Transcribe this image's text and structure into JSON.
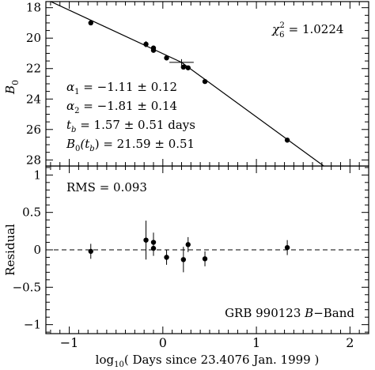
{
  "chart_data": [
    {
      "type": "scatter",
      "panel": "top",
      "ylabel_main": "B",
      "ylabel_sub": "0",
      "y_inverted": true,
      "xlim": [
        -1.25,
        2.2
      ],
      "ylim": [
        17.6,
        28.4
      ],
      "yticks": [
        18,
        20,
        22,
        24,
        26,
        28
      ],
      "points": [
        {
          "x": -0.77,
          "y": 19.0,
          "err": 0.1
        },
        {
          "x": -0.18,
          "y": 20.4,
          "err": 0.2
        },
        {
          "x": -0.1,
          "y": 20.65,
          "err": 0.13
        },
        {
          "x": -0.1,
          "y": 20.8,
          "err": 0.1
        },
        {
          "x": 0.04,
          "y": 21.3,
          "err": 0.1
        },
        {
          "x": 0.22,
          "y": 21.9,
          "err": 0.15
        },
        {
          "x": 0.27,
          "y": 21.95,
          "err": 0.1
        },
        {
          "x": 0.45,
          "y": 22.85,
          "err": 0.1
        },
        {
          "x": 1.33,
          "y": 26.7,
          "err": 0.1
        }
      ],
      "break_marker": {
        "x": 0.2,
        "y": 21.59,
        "xerr": 0.13
      },
      "fit_line": [
        {
          "x": -1.25,
          "y": 17.45
        },
        {
          "x": 0.2,
          "y": 21.59
        },
        {
          "x": 1.72,
          "y": 28.4
        }
      ],
      "annotations": {
        "chi_label": "χ",
        "chi_sub": "6",
        "chi_sup": "2",
        "chi_value": " = 1.0224",
        "alpha1_label": "α",
        "alpha1_sub": "1",
        "alpha1_value": " = −1.11 ± 0.12",
        "alpha2_label": "α",
        "alpha2_sub": "2",
        "alpha2_value": " = −1.81 ± 0.14",
        "tb_label": "t",
        "tb_sub": "b",
        "tb_value": " = 1.57 ± 0.51 days",
        "b0tb_label_a": "B",
        "b0tb_sub": "0",
        "b0tb_label_b": "(t",
        "b0tb_sub2": "b",
        "b0tb_value": ") = 21.59 ± 0.51"
      }
    },
    {
      "type": "scatter",
      "panel": "bottom",
      "ylabel": "Residual",
      "xlabel_a": "log",
      "xlabel_sub": "10",
      "xlabel_b": "( Days since 23.4076 Jan. 1999 )",
      "xlim": [
        -1.25,
        2.2
      ],
      "ylim": [
        -1.12,
        1.12
      ],
      "yticks": [
        -1,
        -0.5,
        0,
        0.5,
        1
      ],
      "ytick_labels": [
        "−1",
        "−0.5",
        "0",
        "0.5",
        "1"
      ],
      "xticks": [
        -1,
        0,
        1,
        2
      ],
      "xtick_labels": [
        "−1",
        "0",
        "1",
        "2"
      ],
      "points": [
        {
          "x": -0.77,
          "y": -0.02,
          "err": 0.1
        },
        {
          "x": -0.18,
          "y": 0.13,
          "err": 0.26
        },
        {
          "x": -0.1,
          "y": 0.1,
          "err": 0.13
        },
        {
          "x": -0.1,
          "y": 0.02,
          "err": 0.1
        },
        {
          "x": 0.04,
          "y": -0.1,
          "err": 0.1
        },
        {
          "x": 0.22,
          "y": -0.13,
          "err": 0.17
        },
        {
          "x": 0.27,
          "y": 0.07,
          "err": 0.1
        },
        {
          "x": 0.45,
          "y": -0.12,
          "err": 0.1
        },
        {
          "x": 1.33,
          "y": 0.03,
          "err": 0.1
        }
      ],
      "zero_line": 0,
      "annotations": {
        "rms": "RMS = 0.093",
        "grb_a": "GRB 990123 ",
        "grb_italic": "B",
        "grb_b": "−Band"
      }
    }
  ]
}
